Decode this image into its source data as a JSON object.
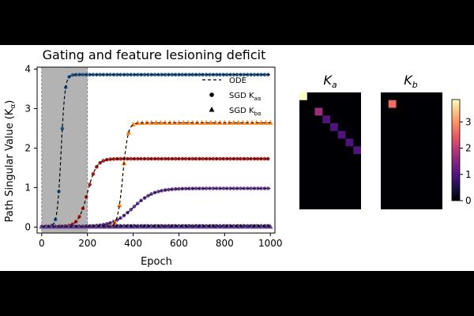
{
  "figure": {
    "title": "Gating and feature lesioning deficit"
  },
  "chart_data": [
    {
      "type": "line",
      "title": "Gating and feature lesioning deficit",
      "xlabel": "Epoch",
      "ylabel": "Path Singular Value (K",
      "ylabel_sub": "α",
      "xlim": [
        -20,
        1020
      ],
      "ylim": [
        -0.15,
        4.05
      ],
      "xticks": [
        0,
        200,
        400,
        600,
        800,
        1000
      ],
      "yticks": [
        0,
        1,
        2,
        3,
        4
      ],
      "shaded_region": [
        0,
        200
      ],
      "grid": false,
      "legend": {
        "placement": "top-right",
        "entries": [
          {
            "label": "ODE",
            "marker": "dashed-line"
          },
          {
            "label": "SGD K",
            "sub": "aα",
            "marker": "circle"
          },
          {
            "label": "SGD K",
            "sub": "bα",
            "marker": "triangle"
          }
        ]
      },
      "series": [
        {
          "color": "#1f5a8c",
          "marker": "circle",
          "asymptote": 3.85,
          "midpoint": 85,
          "rate": 0.12
        },
        {
          "color": "#b71f1a",
          "marker": "circle",
          "asymptote": 1.72,
          "midpoint": 200,
          "rate": 0.05
        },
        {
          "color": "#6a3d9a",
          "marker": "circle",
          "asymptote": 0.97,
          "midpoint": 400,
          "rate": 0.022
        },
        {
          "color": "#2a1a4a",
          "marker": "circle",
          "asymptote": 0.02,
          "midpoint": 200,
          "rate": 0.05
        },
        {
          "color": "#ff7f0e",
          "marker": "triangle",
          "asymptote": 2.63,
          "midpoint": 355,
          "rate": 0.09
        },
        {
          "color": "#1f5a8c",
          "marker": "triangle",
          "asymptote": 0.0,
          "midpoint": 200,
          "rate": 0.05
        },
        {
          "color": "#6a3d9a",
          "marker": "triangle",
          "asymptote": 0.0,
          "midpoint": 200,
          "rate": 0.05
        }
      ]
    },
    {
      "type": "heatmap",
      "title": "K",
      "title_sub": "a",
      "rows": 8,
      "cols": 8,
      "cells": [
        {
          "row": 0,
          "col": 0,
          "value": 3.85
        },
        {
          "row": 2,
          "col": 2,
          "value": 1.72
        },
        {
          "row": 3,
          "col": 3,
          "value": 0.97
        },
        {
          "row": 4,
          "col": 4,
          "value": 0.97
        },
        {
          "row": 5,
          "col": 5,
          "value": 0.97
        },
        {
          "row": 6,
          "col": 6,
          "value": 0.97
        },
        {
          "row": 7,
          "col": 7,
          "value": 0.97
        }
      ]
    },
    {
      "type": "heatmap",
      "title": "K",
      "title_sub": "b",
      "rows": 8,
      "cols": 8,
      "cells": [
        {
          "row": 1,
          "col": 1,
          "value": 2.63
        }
      ]
    }
  ],
  "colorbar": {
    "ticks": [
      0,
      1,
      2,
      3
    ],
    "range": [
      0,
      3.85
    ],
    "colormap": "magma"
  }
}
